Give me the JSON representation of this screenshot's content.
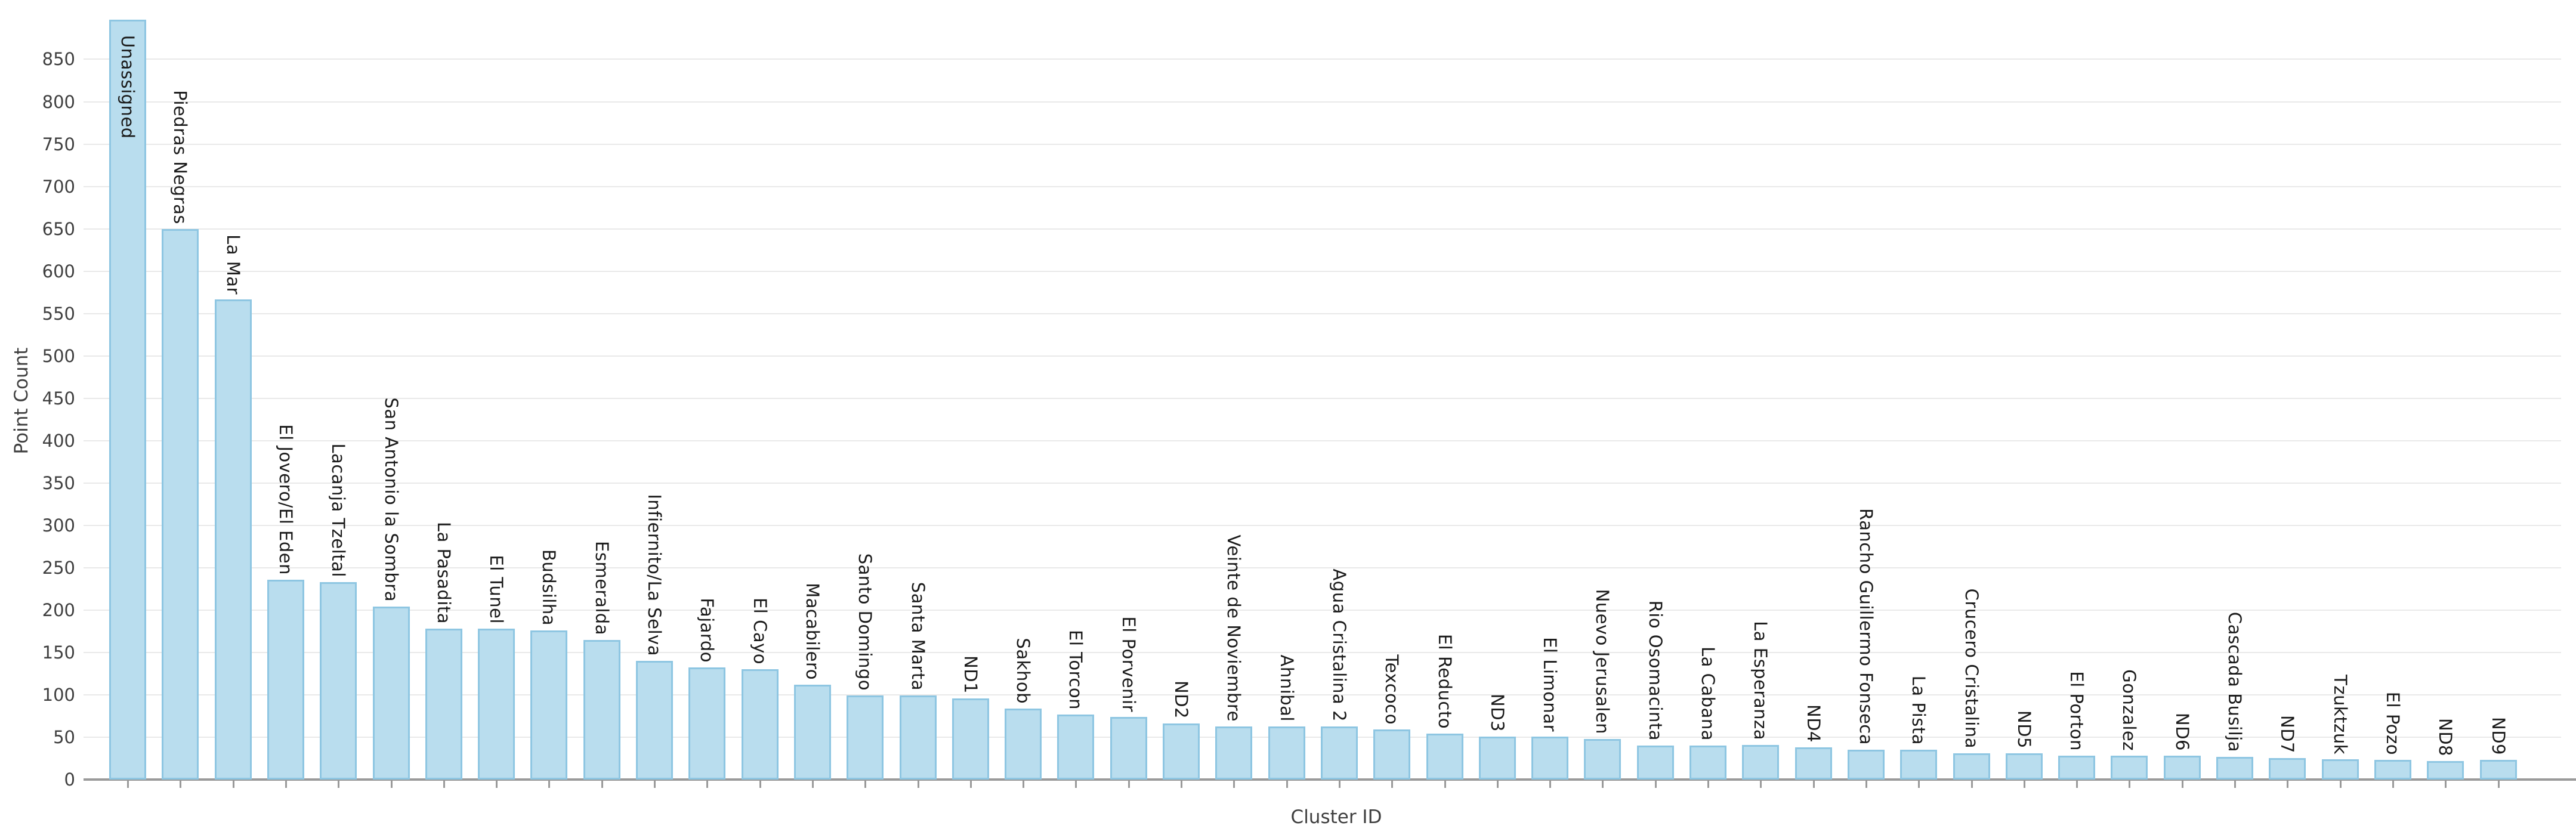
{
  "chart_data": {
    "type": "bar",
    "title": "",
    "xlabel": "Cluster ID",
    "ylabel": "Point Count",
    "categories": [
      "Unassigned",
      "Piedras Negras",
      "La Mar",
      "El Jovero/El Eden",
      "Lacanja Tzeltal",
      "San Antonio la Sombra",
      "La Pasadita",
      "El Tunel",
      "Budsilha",
      "Esmeralda",
      "Infiernito/La Selva",
      "Fajardo",
      "El Cayo",
      "Macabilero",
      "Santo Domingo",
      "Santa Marta",
      "ND1",
      "Sakhob",
      "El Torcon",
      "El Porvenir",
      "ND2",
      "Veinte de Noviembre",
      "Ahnibal",
      "Agua Cristalina 2",
      "Texcoco",
      "El Reducto",
      "ND3",
      "El Limonar",
      "Nuevo Jerusalen",
      "Rio Osomacinta",
      "La Cabana",
      "La Esperanza",
      "ND4",
      "Rancho Guillermo Fonseca",
      "La Pista",
      "Crucero Cristalina",
      "ND5",
      "El Porton",
      "Gonzalez",
      "ND6",
      "Cascada Busilja",
      "ND7",
      "Tzuktzuk",
      "El Pozo",
      "ND8",
      "ND9"
    ],
    "values": [
      897,
      650,
      567,
      236,
      233,
      204,
      178,
      178,
      176,
      165,
      140,
      132,
      130,
      112,
      99,
      99,
      96,
      84,
      77,
      74,
      66,
      63,
      63,
      63,
      59,
      54,
      51,
      51,
      48,
      40,
      40,
      41,
      38,
      35,
      35,
      31,
      31,
      28,
      28,
      28,
      27,
      25,
      24,
      23,
      22,
      23
    ],
    "yticks": [
      0,
      50,
      100,
      150,
      200,
      250,
      300,
      350,
      400,
      450,
      500,
      550,
      600,
      650,
      700,
      750,
      800,
      850
    ],
    "ylim": [
      0,
      905
    ],
    "grid": "horizontal",
    "legend": "none",
    "bar_fill": "#b9ddee",
    "bar_edge": "#8ec6e2",
    "grid_color": "#e9e9e9",
    "axis_line_color": "#9a9a9a",
    "tick_text_color": "#3f3f3f",
    "category_text_color": "#1a1a1a",
    "background": "#ffffff"
  }
}
